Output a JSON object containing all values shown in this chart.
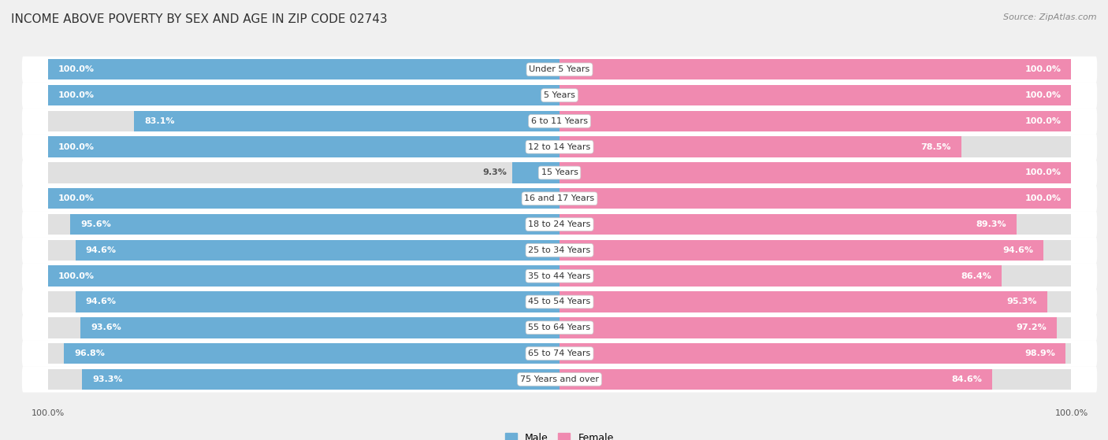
{
  "title": "INCOME ABOVE POVERTY BY SEX AND AGE IN ZIP CODE 02743",
  "source": "Source: ZipAtlas.com",
  "categories": [
    "Under 5 Years",
    "5 Years",
    "6 to 11 Years",
    "12 to 14 Years",
    "15 Years",
    "16 and 17 Years",
    "18 to 24 Years",
    "25 to 34 Years",
    "35 to 44 Years",
    "45 to 54 Years",
    "55 to 64 Years",
    "65 to 74 Years",
    "75 Years and over"
  ],
  "male_values": [
    100.0,
    100.0,
    83.1,
    100.0,
    9.3,
    100.0,
    95.6,
    94.6,
    100.0,
    94.6,
    93.6,
    96.8,
    93.3
  ],
  "female_values": [
    100.0,
    100.0,
    100.0,
    78.5,
    100.0,
    100.0,
    89.3,
    94.6,
    86.4,
    95.3,
    97.2,
    98.9,
    84.6
  ],
  "male_color": "#6BAED6",
  "female_color": "#F08AB0",
  "male_label": "Male",
  "female_label": "Female",
  "bg_color": "#f0f0f0",
  "bar_bg_color": "#e0e0e0",
  "row_bg_color": "#ffffff",
  "title_color": "#333333",
  "source_color": "#888888",
  "value_label_color": "#ffffff",
  "value_label_dark": "#555555",
  "x_max": 100.0,
  "title_fontsize": 11,
  "label_fontsize": 8,
  "category_fontsize": 8,
  "axis_tick_fontsize": 8,
  "source_fontsize": 8
}
